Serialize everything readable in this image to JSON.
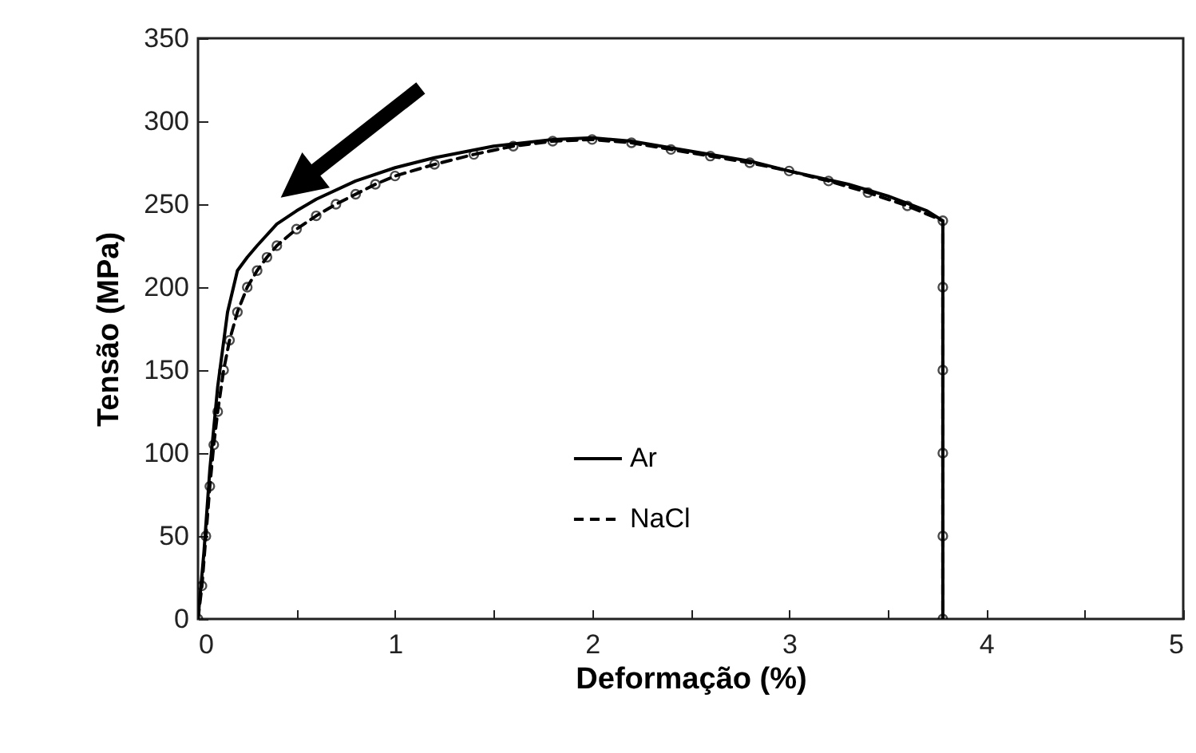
{
  "chart_data": {
    "type": "line",
    "xlabel": "Deformação (%)",
    "ylabel": "Tensão (MPa)",
    "xlim": [
      0,
      5
    ],
    "xticks": [
      0,
      {
        "value": 0.5,
        "label": null
      },
      1,
      {
        "value": 1.5,
        "label": null
      },
      2,
      {
        "value": 2.5,
        "label": null
      },
      3,
      {
        "value": 3.5,
        "label": null
      },
      4,
      {
        "value": 4.5,
        "label": null
      },
      5
    ],
    "ylim": [
      0,
      350
    ],
    "yticks": [
      0,
      50,
      100,
      150,
      200,
      250,
      300,
      350
    ],
    "grid": false,
    "legend": "bottom",
    "series": [
      {
        "name": "Ar",
        "color": "#000000",
        "line_style": "solid",
        "marker": "none",
        "x": [
          0,
          0.03,
          0.06,
          0.1,
          0.15,
          0.2,
          0.25,
          0.3,
          0.4,
          0.5,
          0.6,
          0.8,
          1,
          1.2,
          1.5,
          1.8,
          2,
          2.2,
          2.5,
          2.8,
          3,
          3.3,
          3.5,
          3.7,
          3.78,
          3.78
        ],
        "values": [
          0,
          40,
          90,
          140,
          185,
          210,
          218,
          225,
          238,
          246,
          253,
          264,
          272,
          278,
          285,
          289,
          290,
          288,
          282,
          276,
          270,
          262,
          255,
          246,
          240,
          0
        ]
      },
      {
        "name": "NaCl",
        "color": "#000000",
        "line_style": "dashed",
        "marker": "circle",
        "x": [
          0,
          0.02,
          0.04,
          0.06,
          0.08,
          0.1,
          0.13,
          0.16,
          0.2,
          0.25,
          0.3,
          0.35,
          0.4,
          0.5,
          0.6,
          0.7,
          0.8,
          0.9,
          1,
          1.2,
          1.4,
          1.6,
          1.8,
          2,
          2.2,
          2.4,
          2.6,
          2.8,
          3,
          3.2,
          3.4,
          3.6,
          3.78,
          3.78,
          3.78,
          3.78,
          3.78,
          3.78
        ],
        "values": [
          0,
          20,
          50,
          80,
          105,
          125,
          150,
          168,
          185,
          200,
          210,
          218,
          225,
          235,
          243,
          250,
          256,
          262,
          267,
          274,
          280,
          285,
          288,
          289,
          287,
          283,
          279,
          275,
          270,
          264,
          257,
          249,
          240,
          200,
          150,
          100,
          50,
          0
        ]
      }
    ]
  }
}
